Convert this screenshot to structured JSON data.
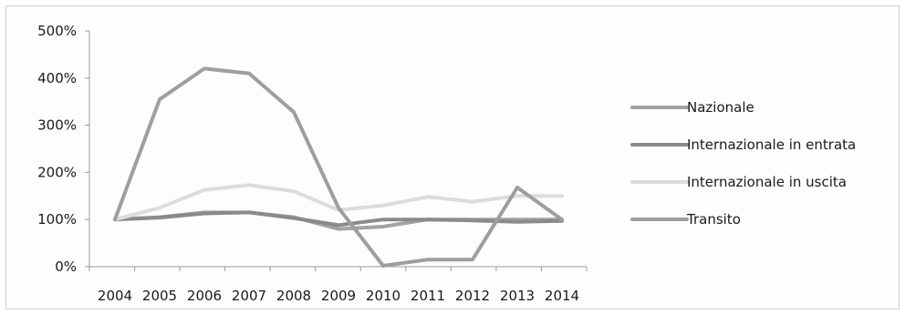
{
  "chart_data": {
    "type": "line",
    "categories": [
      "2004",
      "2005",
      "2006",
      "2007",
      "2008",
      "2009",
      "2010",
      "2011",
      "2012",
      "2013",
      "2014"
    ],
    "y_tick_labels": [
      "0%",
      "100%",
      "200%",
      "300%",
      "400%",
      "500%"
    ],
    "y_ticks": [
      0,
      100,
      200,
      300,
      400,
      500
    ],
    "ylim": [
      0,
      500
    ],
    "grid": false,
    "legend_position": "right",
    "series": [
      {
        "name": "Nazionale",
        "color": "#a2a2a2",
        "values": [
          100,
          105,
          115,
          115,
          105,
          80,
          85,
          100,
          100,
          100,
          100
        ]
      },
      {
        "name": "Internazionale in entrata",
        "color": "#8a8a8a",
        "values": [
          100,
          104,
          113,
          115,
          103,
          88,
          100,
          100,
          98,
          95,
          97
        ]
      },
      {
        "name": "Internazionale in uscita",
        "color": "#dcdcdc",
        "values": [
          100,
          125,
          163,
          173,
          160,
          120,
          130,
          148,
          138,
          150,
          150
        ]
      },
      {
        "name": "Transito",
        "color": "#9e9e9e",
        "values": [
          100,
          355,
          420,
          410,
          328,
          125,
          2,
          15,
          15,
          168,
          100
        ]
      }
    ]
  }
}
